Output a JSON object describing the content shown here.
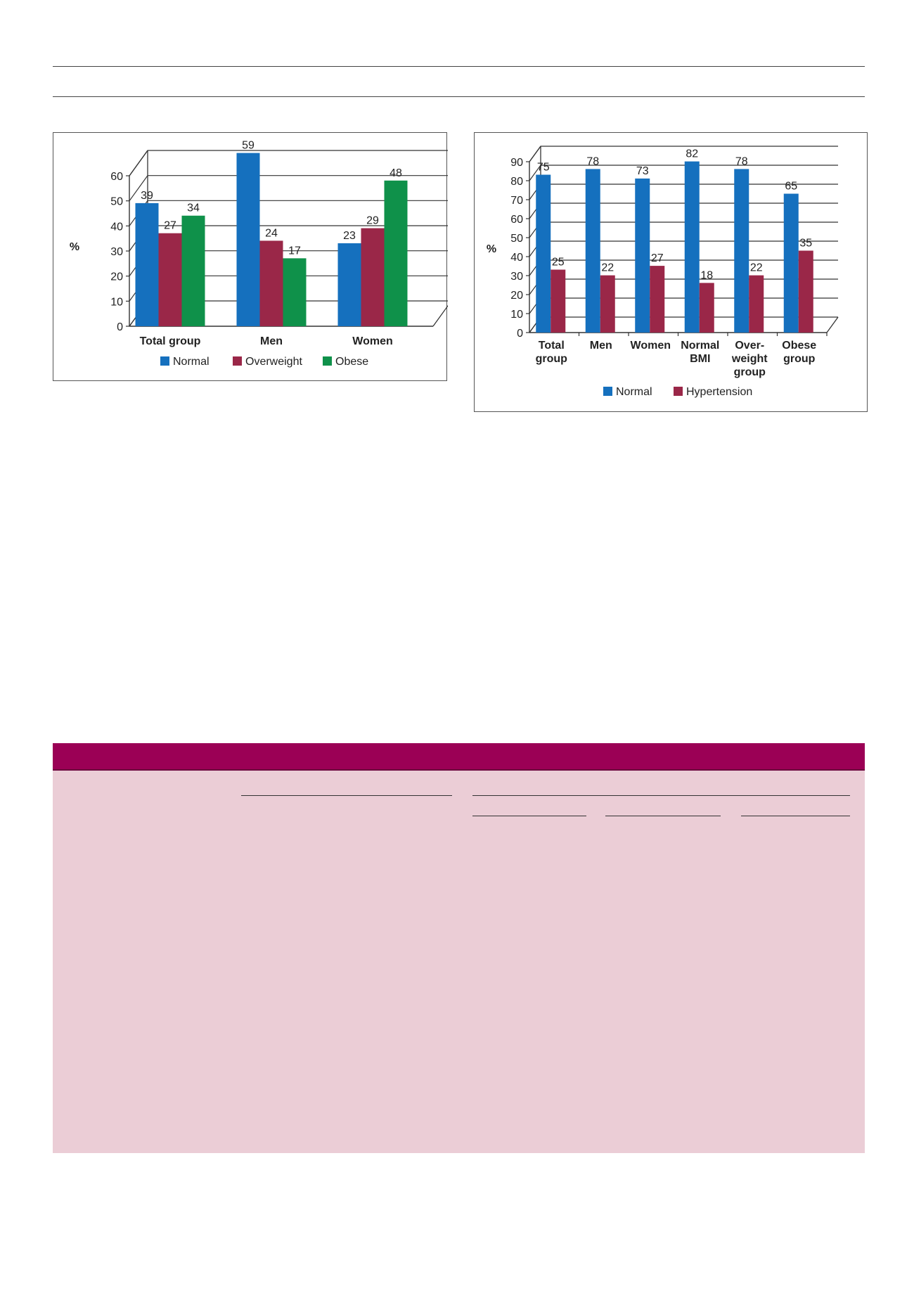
{
  "chart_data": [
    {
      "type": "bar",
      "ylabel": "%",
      "ylim": [
        0,
        60
      ],
      "yticks": [
        0,
        10,
        20,
        30,
        40,
        50,
        60
      ],
      "categories": [
        "Total group",
        "Men",
        "Women"
      ],
      "series": [
        {
          "name": "Normal",
          "color": "#1570be",
          "values": [
            39,
            59,
            23
          ]
        },
        {
          "name": "Overweight",
          "color": "#9a2748",
          "values": [
            27,
            24,
            29
          ]
        },
        {
          "name": "Obese",
          "color": "#0f914a",
          "values": [
            34,
            17,
            48
          ]
        }
      ],
      "legend": "bottom",
      "grid": true,
      "style": "3d-box"
    },
    {
      "type": "bar",
      "ylabel": "%",
      "ylim": [
        0,
        90
      ],
      "yticks": [
        0,
        10,
        20,
        30,
        40,
        50,
        60,
        70,
        80,
        90
      ],
      "categories": [
        [
          "Total",
          "group"
        ],
        [
          "Men"
        ],
        [
          "Women"
        ],
        [
          "Normal",
          "BMI"
        ],
        [
          "Over-",
          "weight",
          "group"
        ],
        [
          "Obese",
          "group"
        ]
      ],
      "series": [
        {
          "name": "Normal",
          "color": "#1570be",
          "values": [
            75,
            78,
            73,
            82,
            78,
            65
          ]
        },
        {
          "name": "Hypertension",
          "color": "#9a2748",
          "values": [
            25,
            22,
            27,
            18,
            22,
            35
          ]
        }
      ],
      "legend": "bottom",
      "grid": true,
      "style": "3d-box"
    }
  ]
}
